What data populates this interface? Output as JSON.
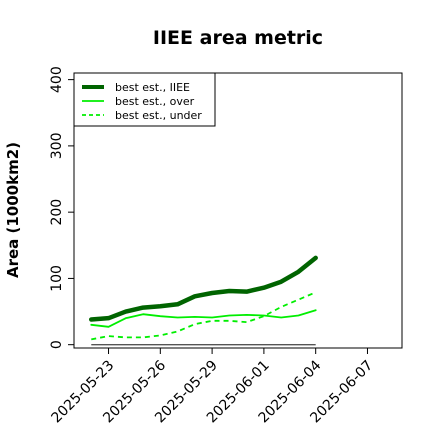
{
  "chart_data": {
    "type": "line",
    "title": "IIEE area metric",
    "xlabel": "",
    "ylabel": "Area (1000km2)",
    "ylim": [
      -5,
      410
    ],
    "xlim": [
      "2025-05-21",
      "2025-06-09"
    ],
    "grid": false,
    "legend_position": "top-left",
    "x_ticks": [
      "2025-05-23",
      "2025-05-26",
      "2025-05-29",
      "2025-06-01",
      "2025-06-04",
      "2025-06-07"
    ],
    "y_ticks": [
      0,
      100,
      200,
      300,
      400
    ],
    "reference_line": {
      "value": 0,
      "color": "#555555",
      "from": "2025-05-22",
      "to": "2025-06-04"
    },
    "dates": [
      "2025-05-22",
      "2025-05-23",
      "2025-05-24",
      "2025-05-25",
      "2025-05-26",
      "2025-05-27",
      "2025-05-28",
      "2025-05-29",
      "2025-05-30",
      "2025-05-31",
      "2025-06-01",
      "2025-06-02",
      "2025-06-03",
      "2025-06-04"
    ],
    "series": [
      {
        "name": "best est., IIEE",
        "color": "#006400",
        "width": 4.5,
        "dash": "",
        "values": [
          38,
          40,
          50,
          56,
          58,
          61,
          73,
          78,
          81,
          80,
          86,
          95,
          110,
          131
        ]
      },
      {
        "name": "best est., over",
        "color": "#00ee00",
        "width": 1.8,
        "dash": "",
        "values": [
          30,
          27,
          40,
          46,
          43,
          41,
          42,
          41,
          44,
          45,
          44,
          41,
          44,
          52
        ]
      },
      {
        "name": "best est., under",
        "color": "#00ee00",
        "width": 1.8,
        "dash": "5,4",
        "values": [
          8,
          13,
          11,
          11,
          14,
          20,
          31,
          36,
          36,
          34,
          43,
          57,
          68,
          79
        ]
      }
    ]
  }
}
